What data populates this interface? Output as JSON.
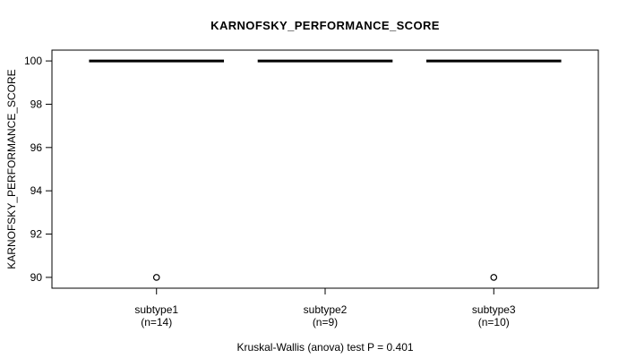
{
  "chart_data": {
    "type": "boxplot",
    "title": "KARNOFSKY_PERFORMANCE_SCORE",
    "ylabel": "KARNOFSKY_PERFORMANCE_SCORE",
    "xlabel": "",
    "footnote": "Kruskal-Wallis (anova) test P = 0.401",
    "ylim": [
      89.5,
      100.5
    ],
    "xlim": [
      0.38,
      3.62
    ],
    "yticks": [
      90,
      92,
      94,
      96,
      98,
      100
    ],
    "grid": false,
    "legend": "none",
    "box_width": 0.8,
    "groups": [
      {
        "label": "subtype1",
        "sublabel": "(n=14)",
        "n": 14,
        "x": 1,
        "median": 100,
        "q1": 100,
        "q3": 100,
        "whisker_low": 100,
        "whisker_high": 100,
        "outliers": [
          90
        ]
      },
      {
        "label": "subtype2",
        "sublabel": "(n=9)",
        "n": 9,
        "x": 2,
        "median": 100,
        "q1": 100,
        "q3": 100,
        "whisker_low": 100,
        "whisker_high": 100,
        "outliers": []
      },
      {
        "label": "subtype3",
        "sublabel": "(n=10)",
        "n": 10,
        "x": 3,
        "median": 100,
        "q1": 100,
        "q3": 100,
        "whisker_low": 100,
        "whisker_high": 100,
        "outliers": [
          90
        ]
      }
    ],
    "colors": {
      "line": "#000000",
      "background": "#ffffff"
    }
  }
}
